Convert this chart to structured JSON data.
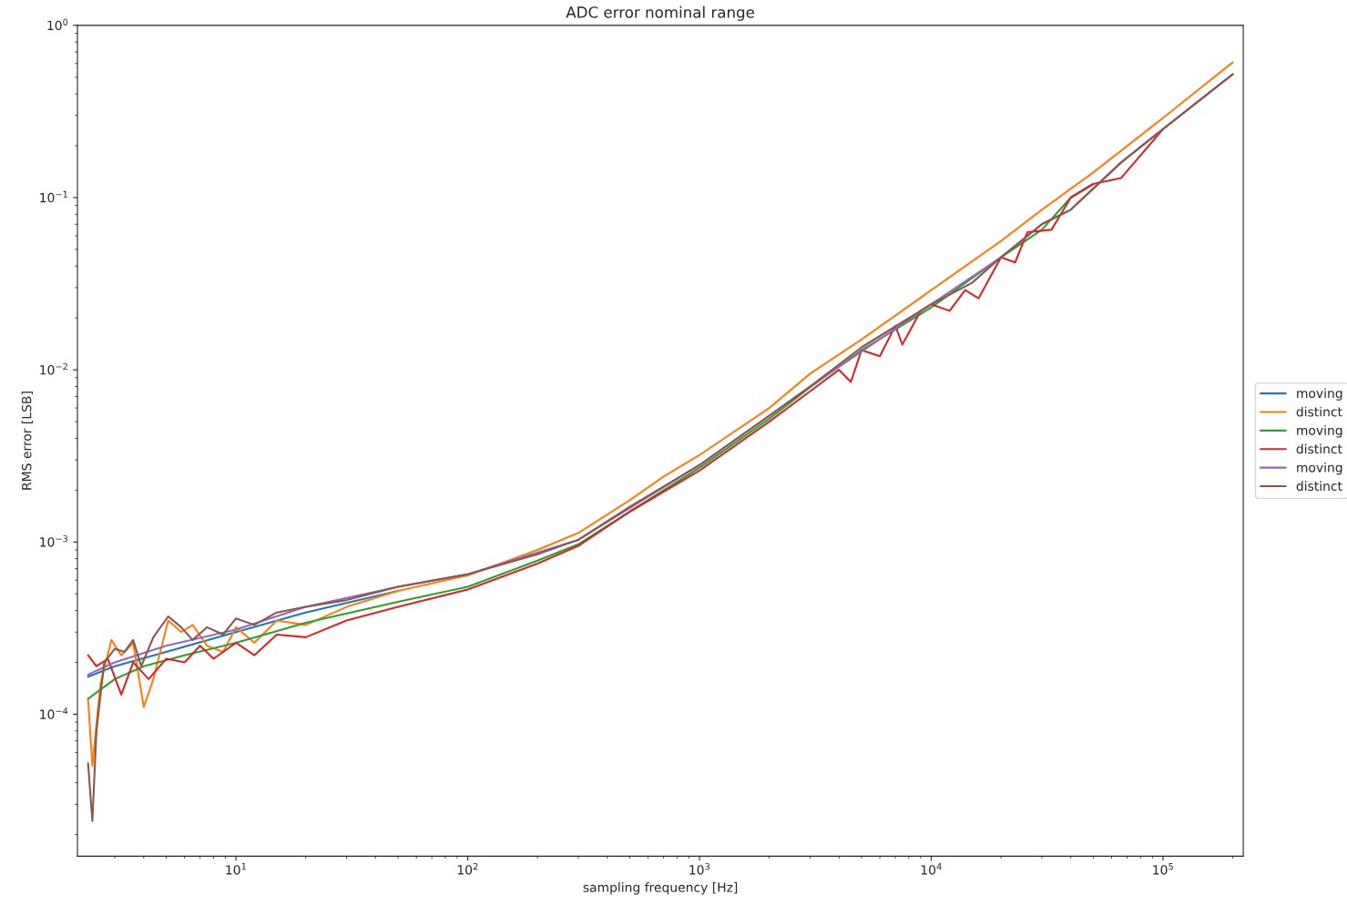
{
  "chart_data": {
    "type": "line",
    "title": "ADC error nominal range",
    "xlabel": "sampling frequency [Hz]",
    "ylabel": "RMS error [LSB]",
    "log": "xy",
    "grid": false,
    "legend": "right",
    "marker": "none",
    "line_style": "solid",
    "xlim": [
      2.07,
      222000
    ],
    "ylim": [
      1.5e-05,
      1
    ],
    "xticks": [
      {
        "value": 10,
        "label": "10$^{1}$"
      },
      {
        "value": 100,
        "label": "10$^{2}$"
      },
      {
        "value": 1000,
        "label": "10$^{3}$"
      },
      {
        "value": 10000,
        "label": "10$^{4}$"
      },
      {
        "value": 100000,
        "label": "10$^{5}$"
      }
    ],
    "yticks": [
      {
        "value": 0.0001,
        "label": "10$^{−4}$"
      },
      {
        "value": 0.001,
        "label": "10$^{−3}$"
      },
      {
        "value": 0.01,
        "label": "10$^{−2}$"
      },
      {
        "value": 0.1,
        "label": "10$^{−1}$"
      },
      {
        "value": 1,
        "label": "10$^{0}$"
      }
    ],
    "series": [
      {
        "name": "moving",
        "color": "#1f77b4",
        "x": [
          2.3,
          3,
          5,
          10,
          20,
          50
        ],
        "values": [
          0.000165,
          0.00019,
          0.00023,
          0.0003,
          0.00039,
          0.00052
        ]
      },
      {
        "name": "distinct",
        "color": "#ff7f0e",
        "x": [
          2.3,
          2.4,
          2.6,
          2.9,
          3.2,
          3.6,
          4.0,
          4.4,
          5.1,
          5.8,
          6.5,
          7.5,
          8.8,
          10,
          12,
          15,
          20,
          30,
          50,
          100,
          200,
          300,
          500,
          700,
          1000,
          2000,
          3000,
          5000,
          10000,
          20000,
          30000,
          50000,
          100000,
          200000
        ],
        "values": [
          0.000123,
          5e-05,
          0.00015,
          0.00027,
          0.00022,
          0.00026,
          0.00011,
          0.00016,
          0.00035,
          0.0003,
          0.00033,
          0.00025,
          0.00023,
          0.00032,
          0.00026,
          0.00035,
          0.00033,
          0.00042,
          0.00052,
          0.00064,
          0.0009,
          0.00113,
          0.00175,
          0.0024,
          0.0032,
          0.006,
          0.0095,
          0.015,
          0.029,
          0.056,
          0.085,
          0.14,
          0.29,
          0.61
        ]
      },
      {
        "name": "moving",
        "color": "#2ca02c",
        "x": [
          2.3,
          3,
          4,
          6,
          10,
          20,
          50,
          100,
          200,
          300,
          500,
          1000,
          2000,
          3000,
          5000,
          10000,
          20000,
          30000,
          40000,
          50000
        ],
        "values": [
          0.000123,
          0.00016,
          0.00019,
          0.00022,
          0.00026,
          0.00034,
          0.00045,
          0.00055,
          0.00078,
          0.00097,
          0.0015,
          0.0027,
          0.0052,
          0.0079,
          0.013,
          0.023,
          0.045,
          0.065,
          0.1,
          0.12
        ]
      },
      {
        "name": "distinct",
        "color": "#d62728",
        "x": [
          2.3,
          2.5,
          2.8,
          3.2,
          3.6,
          4.2,
          5,
          6,
          7,
          8,
          10,
          12,
          15,
          20,
          30,
          50,
          100,
          200,
          300,
          500,
          1000,
          2000,
          3000,
          4000,
          4500,
          5000,
          6000,
          7000,
          7500,
          9000,
          10000,
          12000,
          14000,
          16000,
          20000,
          23000,
          26000,
          33000,
          40000,
          50000,
          66000,
          100000,
          200000
        ],
        "values": [
          0.00022,
          0.00019,
          0.00021,
          0.00013,
          0.0002,
          0.00016,
          0.00021,
          0.0002,
          0.00025,
          0.00021,
          0.00026,
          0.00022,
          0.00029,
          0.00028,
          0.00035,
          0.00042,
          0.00053,
          0.00075,
          0.00095,
          0.0015,
          0.0026,
          0.005,
          0.0075,
          0.01,
          0.0085,
          0.013,
          0.012,
          0.018,
          0.014,
          0.022,
          0.024,
          0.022,
          0.029,
          0.026,
          0.045,
          0.042,
          0.063,
          0.065,
          0.1,
          0.12,
          0.13,
          0.25,
          0.52
        ]
      },
      {
        "name": "moving",
        "color": "#9467bd",
        "x": [
          2.3,
          3,
          5,
          10,
          20,
          50,
          100,
          300,
          1000,
          3000,
          10000,
          20000,
          30000,
          40000,
          66000,
          100000,
          200000
        ],
        "values": [
          0.00017,
          0.0002,
          0.00025,
          0.00031,
          0.00042,
          0.00055,
          0.00065,
          0.00103,
          0.0028,
          0.008,
          0.024,
          0.045,
          0.07,
          0.085,
          0.16,
          0.25,
          0.52
        ]
      },
      {
        "name": "distinct",
        "color": "#8c564b",
        "x": [
          2.3,
          2.4,
          2.5,
          2.7,
          3.0,
          3.3,
          3.6,
          3.9,
          4.4,
          5.1,
          5.8,
          6.5,
          7.5,
          8.8,
          10,
          12,
          15,
          20,
          30,
          50,
          100,
          200,
          300,
          500,
          1000,
          2000,
          3000,
          5000,
          10000,
          15000,
          20000,
          30000,
          40000,
          66000,
          100000,
          200000
        ],
        "values": [
          5.2e-05,
          2.4e-05,
          8e-05,
          0.0002,
          0.00024,
          0.00023,
          0.00027,
          0.00019,
          0.00028,
          0.00037,
          0.00032,
          0.00027,
          0.00032,
          0.00029,
          0.00036,
          0.00033,
          0.00039,
          0.00042,
          0.00046,
          0.00055,
          0.00065,
          0.00085,
          0.00103,
          0.0016,
          0.0028,
          0.0054,
          0.008,
          0.0135,
          0.024,
          0.032,
          0.045,
          0.07,
          0.085,
          0.16,
          0.25,
          0.52
        ]
      }
    ]
  }
}
